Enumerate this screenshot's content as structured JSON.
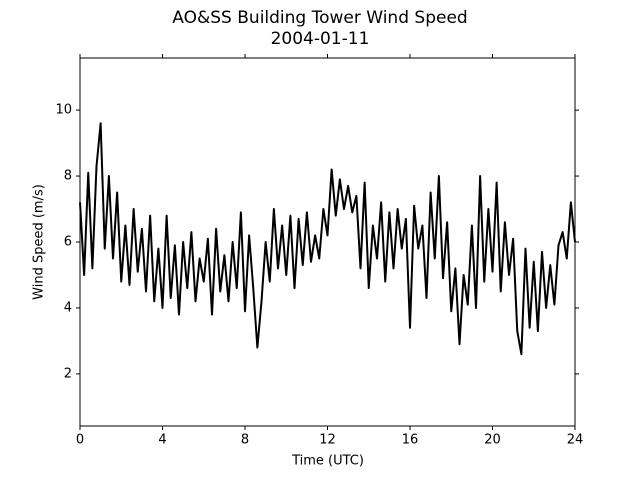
{
  "chart_data": {
    "type": "line",
    "title": "AO&SS Building Tower Wind Speed",
    "subtitle": "2004-01-11",
    "x_label": "Time (UTC)",
    "y_label": "Wind Speed (m/s)",
    "color": "#000000",
    "x": [
      0,
      0.2,
      0.4,
      0.6,
      0.8,
      1.0,
      1.2,
      1.4,
      1.6,
      1.8,
      2.0,
      2.2,
      2.4,
      2.6,
      2.8,
      3.0,
      3.2,
      3.4,
      3.6,
      3.8,
      4.0,
      4.2,
      4.4,
      4.6,
      4.8,
      5.0,
      5.2,
      5.4,
      5.6,
      5.8,
      6.0,
      6.2,
      6.4,
      6.6,
      6.8,
      7.0,
      7.2,
      7.4,
      7.6,
      7.8,
      8.0,
      8.2,
      8.4,
      8.6,
      8.8,
      9.0,
      9.2,
      9.4,
      9.6,
      9.8,
      10.0,
      10.2,
      10.4,
      10.6,
      10.8,
      11.0,
      11.2,
      11.4,
      11.6,
      11.8,
      12.0,
      12.2,
      12.4,
      12.6,
      12.8,
      13.0,
      13.2,
      13.4,
      13.6,
      13.8,
      14.0,
      14.2,
      14.4,
      14.6,
      14.8,
      15.0,
      15.2,
      15.4,
      15.6,
      15.8,
      16.0,
      16.2,
      16.4,
      16.6,
      16.8,
      17.0,
      17.2,
      17.4,
      17.6,
      17.8,
      18.0,
      18.2,
      18.4,
      18.6,
      18.8,
      19.0,
      19.2,
      19.4,
      19.6,
      19.8,
      20.0,
      20.2,
      20.4,
      20.6,
      20.8,
      21.0,
      21.2,
      21.4,
      21.6,
      21.8,
      22.0,
      22.2,
      22.4,
      22.6,
      22.8,
      23.0,
      23.2,
      23.4,
      23.6,
      23.8,
      24.0
    ],
    "values": [
      7.2,
      5.0,
      8.1,
      5.2,
      8.3,
      9.6,
      5.8,
      8.0,
      5.5,
      7.5,
      4.8,
      6.5,
      4.7,
      7.0,
      5.1,
      6.4,
      4.5,
      6.8,
      4.2,
      5.8,
      4.0,
      6.8,
      4.3,
      5.9,
      3.8,
      6.0,
      4.6,
      6.3,
      4.2,
      5.5,
      4.8,
      6.1,
      3.8,
      6.4,
      4.5,
      5.6,
      4.2,
      6.0,
      4.6,
      6.9,
      3.9,
      6.2,
      4.6,
      2.8,
      4.2,
      6.0,
      4.8,
      7.0,
      5.2,
      6.5,
      5.0,
      6.8,
      4.6,
      6.7,
      5.3,
      6.9,
      5.4,
      6.2,
      5.5,
      7.0,
      6.2,
      8.2,
      6.8,
      7.9,
      7.0,
      7.7,
      6.9,
      7.4,
      5.2,
      7.8,
      4.6,
      6.5,
      5.5,
      7.2,
      4.8,
      6.9,
      5.2,
      7.0,
      5.8,
      6.7,
      3.4,
      7.1,
      5.8,
      6.5,
      4.3,
      7.5,
      5.5,
      8.0,
      4.9,
      6.6,
      3.9,
      5.2,
      2.9,
      5.0,
      4.1,
      6.5,
      4.0,
      8.0,
      4.8,
      7.0,
      5.1,
      7.8,
      4.5,
      6.6,
      5.0,
      6.1,
      3.3,
      2.6,
      5.8,
      3.4,
      5.4,
      3.3,
      5.7,
      4.0,
      5.3,
      4.1,
      5.9,
      6.3,
      5.5,
      7.2,
      6.0
    ],
    "xlim": [
      0,
      24
    ],
    "xticks": [
      0,
      4,
      8,
      12,
      16,
      20,
      24
    ],
    "ylim": [
      0.42,
      11.58
    ],
    "yticks": [
      2,
      4,
      6,
      8,
      10
    ]
  }
}
